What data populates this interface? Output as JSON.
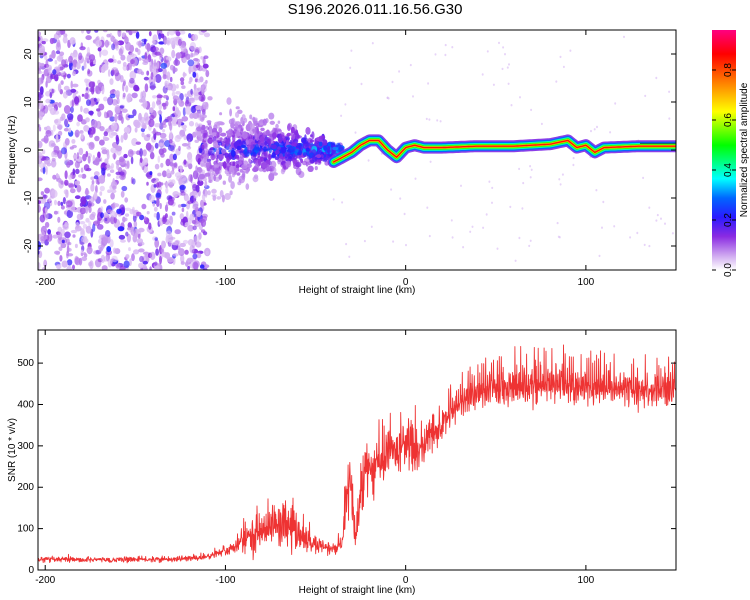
{
  "page_title": "S196.2026.011.16.56.G30",
  "chart_data": [
    {
      "type": "heatmap",
      "title": "S196.2026.011.16.56.G30",
      "xlabel": "Height of straight line (km)",
      "ylabel": "Frequency (Hz)",
      "xlim": [
        -204,
        150
      ],
      "ylim": [
        -25,
        25
      ],
      "xticks": [
        -200,
        -100,
        0,
        100
      ],
      "yticks": [
        -20,
        -10,
        0,
        10,
        20
      ],
      "colorbar": {
        "label": "Normalized spectral amplitude",
        "range": [
          0,
          0.96
        ],
        "ticks": [
          0.0,
          0.2,
          0.4,
          0.6,
          0.8
        ],
        "colormap": [
          "#ffffff",
          "#8a2be2",
          "#0000ff",
          "#00ffff",
          "#00ff00",
          "#ffff00",
          "#ff7f00",
          "#ff0000",
          "#ff0080"
        ]
      },
      "ridge": {
        "description": "narrow high-amplitude carrier line",
        "x": [
          -40,
          -35,
          -30,
          -25,
          -20,
          -15,
          -10,
          -5,
          0,
          5,
          10,
          20,
          40,
          60,
          80,
          90,
          95,
          100,
          105,
          110,
          130,
          150
        ],
        "y": [
          -2.5,
          -1.5,
          -0.5,
          1,
          2,
          2,
          0,
          -1.5,
          0.5,
          1,
          0.5,
          0.5,
          0.8,
          0.8,
          1.2,
          2,
          0.5,
          1,
          -0.5,
          0.5,
          0.8,
          0.8
        ]
      },
      "regions": [
        {
          "x_range": [
            -204,
            -115
          ],
          "y_range": [
            -25,
            25
          ],
          "amplitude": "low, scattered noise"
        },
        {
          "x_range": [
            -115,
            -40
          ],
          "y_range": [
            -8,
            8
          ],
          "amplitude": "medium, converging toward 0 Hz"
        },
        {
          "x_range": [
            -40,
            150
          ],
          "y_range": [
            -3,
            3
          ],
          "amplitude": "high, concentrated carrier"
        }
      ]
    },
    {
      "type": "line",
      "xlabel": "Height of straight line (km)",
      "ylabel": "SNR (10 * v/v)",
      "xlim": [
        -204,
        150
      ],
      "ylim": [
        0,
        580
      ],
      "xticks": [
        -200,
        -100,
        0,
        100
      ],
      "yticks": [
        0,
        100,
        200,
        300,
        400,
        500
      ],
      "series": [
        {
          "name": "SNR",
          "color": "#ee3333",
          "x": [
            -204,
            -190,
            -180,
            -170,
            -160,
            -150,
            -140,
            -130,
            -120,
            -110,
            -100,
            -95,
            -90,
            -85,
            -80,
            -75,
            -70,
            -65,
            -60,
            -55,
            -50,
            -45,
            -40,
            -35,
            -32,
            -30,
            -28,
            -25,
            -22,
            -20,
            -18,
            -15,
            -12,
            -10,
            -8,
            -5,
            -2,
            0,
            5,
            10,
            15,
            20,
            25,
            30,
            35,
            40,
            50,
            60,
            70,
            80,
            90,
            100,
            110,
            120,
            130,
            140,
            150
          ],
          "values": [
            25,
            25,
            24,
            25,
            24,
            26,
            25,
            26,
            28,
            32,
            45,
            55,
            70,
            85,
            95,
            110,
            108,
            100,
            85,
            70,
            60,
            55,
            50,
            60,
            210,
            180,
            80,
            170,
            240,
            260,
            230,
            265,
            250,
            300,
            280,
            290,
            310,
            300,
            280,
            300,
            330,
            350,
            385,
            405,
            420,
            430,
            440,
            445,
            445,
            450,
            450,
            445,
            440,
            440,
            435,
            435,
            440
          ],
          "spread": [
            6,
            6,
            6,
            6,
            6,
            6,
            6,
            6,
            7,
            8,
            12,
            18,
            30,
            40,
            45,
            50,
            50,
            45,
            40,
            30,
            20,
            18,
            15,
            20,
            90,
            80,
            40,
            70,
            70,
            65,
            60,
            55,
            60,
            60,
            55,
            60,
            65,
            60,
            60,
            55,
            50,
            45,
            40,
            40,
            45,
            50,
            55,
            55,
            55,
            55,
            55,
            55,
            50,
            50,
            50,
            50,
            50
          ]
        }
      ]
    }
  ]
}
